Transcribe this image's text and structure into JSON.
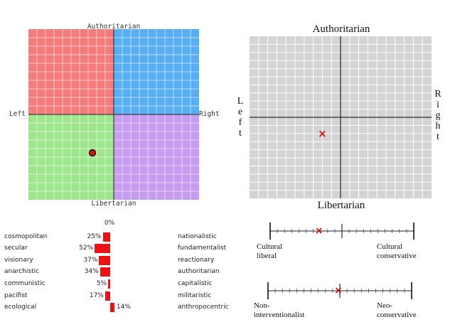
{
  "compass1": {
    "top_label": "Authoritarian",
    "bottom_label": "Libertarian",
    "left_label": "Left",
    "right_label": "Right",
    "colors": {
      "auth_left": "#f47c7c",
      "auth_right": "#57aef0",
      "lib_left": "#9ee68b",
      "lib_right": "#c79df0",
      "grid": "#ffffff",
      "marker": "#dd1111"
    },
    "marker": {
      "economic": -2.5,
      "social": -4.5
    }
  },
  "compass2": {
    "top_label": "Authoritarian",
    "bottom_label": "Libertarian",
    "left_label": "Left",
    "right_label": "Right",
    "marker": {
      "economic": -2.0,
      "social": -2.0
    },
    "marker_symbol": "×"
  },
  "scales": [
    {
      "left_line1": "Cultural",
      "left_line2": "liberal",
      "right_line1": "Cultural",
      "right_line2": "conservative",
      "marker_fraction": 0.34
    },
    {
      "left_line1": "Non-",
      "left_line2": "interventionalist",
      "right_line1": "Neo-",
      "right_line2": "conservative",
      "marker_fraction": 0.49
    }
  ],
  "bars": {
    "zero_label": "0%",
    "rows": [
      {
        "left": "cosmopolitan",
        "right": "nationalistic",
        "value": 25,
        "label": "25%",
        "direction": "left"
      },
      {
        "left": "secular",
        "right": "fundamentalist",
        "value": 52,
        "label": "52%",
        "direction": "left"
      },
      {
        "left": "visionary",
        "right": "reactionary",
        "value": 37,
        "label": "37%",
        "direction": "left"
      },
      {
        "left": "anarchistic",
        "right": "authoritarian",
        "value": 34,
        "label": "34%",
        "direction": "left"
      },
      {
        "left": "communistic",
        "right": "capitalistic",
        "value": 5,
        "label": "5%",
        "direction": "left"
      },
      {
        "left": "pacifist",
        "right": "militaristic",
        "value": 17,
        "label": "17%",
        "direction": "left"
      },
      {
        "left": "ecological",
        "right": "anthropocentric",
        "value": 14,
        "label": "14%",
        "direction": "right"
      }
    ]
  }
}
